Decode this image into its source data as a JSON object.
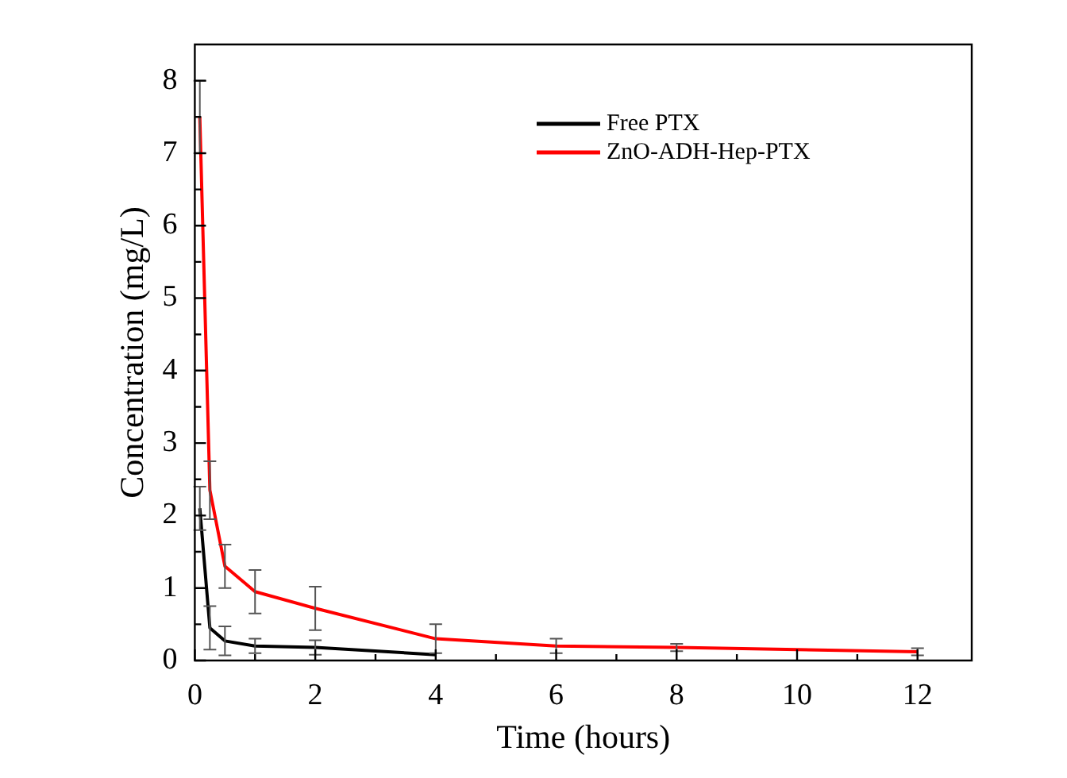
{
  "chart_data": {
    "type": "line",
    "xlabel": "Time (hours)",
    "ylabel": "Concentration (mg/L)",
    "xlim": [
      0,
      12.9
    ],
    "ylim": [
      0,
      8.5
    ],
    "xticks": [
      0,
      {
        "value": 1,
        "label": null
      },
      2,
      {
        "value": 3,
        "label": null
      },
      4,
      {
        "value": 5,
        "label": null
      },
      6,
      {
        "value": 7,
        "label": null
      },
      8,
      {
        "value": 9,
        "label": null
      },
      10,
      {
        "value": 11,
        "label": null
      },
      12
    ],
    "yticks": [
      0,
      {
        "value": 0.5,
        "label": null
      },
      1,
      {
        "value": 1.5,
        "label": null
      },
      2,
      {
        "value": 2.5,
        "label": null
      },
      3,
      {
        "value": 3.5,
        "label": null
      },
      4,
      {
        "value": 4.5,
        "label": null
      },
      5,
      {
        "value": 5.5,
        "label": null
      },
      6,
      {
        "value": 6.5,
        "label": null
      },
      7,
      {
        "value": 7.5,
        "label": null
      },
      8
    ],
    "grid": false,
    "legend": "top right",
    "marker": "none",
    "line_style": "solid",
    "series": [
      {
        "name": "Free PTX",
        "color": "#000000",
        "x": [
          0.083,
          0.25,
          0.5,
          1,
          2,
          4
        ],
        "values": [
          2.1,
          0.45,
          0.27,
          0.2,
          0.18,
          0.08
        ],
        "errors": [
          0.3,
          0.3,
          0.2,
          0.1,
          0.1,
          null
        ]
      },
      {
        "name": "ZnO-ADH-Hep-PTX",
        "color": "#ff0000",
        "x": [
          0.083,
          0.25,
          0.5,
          1,
          2,
          4,
          6,
          8,
          12
        ],
        "values": [
          7.5,
          2.35,
          1.3,
          0.95,
          0.72,
          0.3,
          0.2,
          0.18,
          0.12
        ],
        "errors": [
          0.5,
          0.4,
          0.3,
          0.3,
          0.3,
          0.2,
          0.1,
          0.05,
          0.05
        ]
      }
    ]
  }
}
